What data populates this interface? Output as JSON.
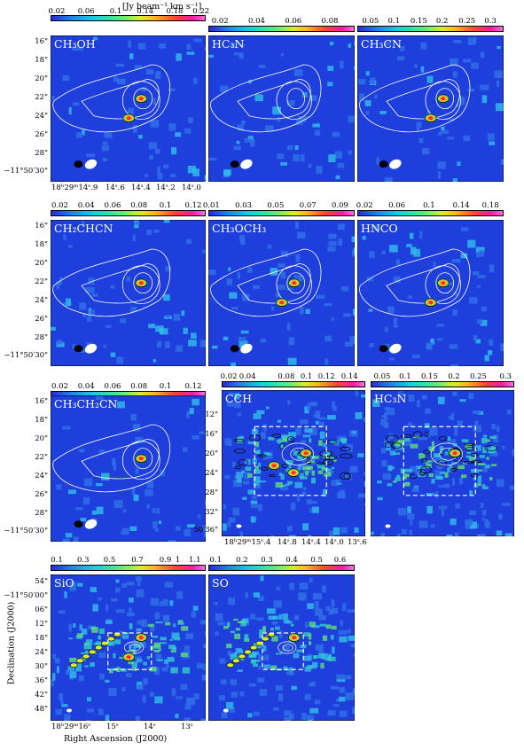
{
  "unit_label": "[Jy beam⁻¹ km s⁻¹]",
  "colors": {
    "map_bg": "#1f3fdc",
    "contour": "#ffffff",
    "outline": "#000000"
  },
  "axis": {
    "ylabel": "Declination (J2000)",
    "xlabel": "Right Ascension (J2000)",
    "dec_ticks_small": [
      "16\"",
      "18\"",
      "20\"",
      "22\"",
      "24\"",
      "26\"",
      "28\"",
      "−11°50′30\""
    ],
    "ra_ticks_small": [
      "18ʰ29ᵐ14ˢ.9",
      "14ˢ.6",
      "14ˢ.4",
      "14ˢ.2",
      "14ˢ.0"
    ],
    "dec_ticks_mid": [
      "12\"",
      "16\"",
      "20\"",
      "24\"",
      "28\"",
      "32\"",
      "50′36\""
    ],
    "ra_ticks_mid": [
      "18ʰ29ᵐ15ˢ.4",
      "14ˢ.8",
      "14ˢ.4",
      "14ˢ.0",
      "13ˢ.6"
    ],
    "dec_ticks_large": [
      "54\"",
      "−11°50′00\"",
      "06\"",
      "12\"",
      "18\"",
      "24\"",
      "30\"",
      "36\"",
      "42\"",
      "48\""
    ],
    "ra_ticks_large": [
      "18ʰ29ᵐ16ˢ",
      "15ˢ",
      "14ˢ",
      "13ˢ"
    ]
  },
  "panels": [
    {
      "label": "CH₃OH",
      "cbar": [
        "0.02",
        "0.06",
        "0.1",
        "0.14",
        "0.18",
        "0.22"
      ]
    },
    {
      "label": "HC₃N",
      "cbar": [
        "0.02",
        "0.04",
        "0.06",
        "0.08"
      ]
    },
    {
      "label": "CH₃CN",
      "cbar": [
        "0.05",
        "0.1",
        "0.15",
        "0.2",
        "0.25",
        "0.3"
      ]
    },
    {
      "label": "CH₂CHCN",
      "cbar": [
        "0.02",
        "0.04",
        "0.06",
        "0.08",
        "0.1",
        "0.12"
      ]
    },
    {
      "label": "CH₃OCH₃",
      "cbar": [
        "0.01",
        "0.03",
        "0.05",
        "0.07",
        "0.09"
      ]
    },
    {
      "label": "HNCO",
      "cbar": [
        "0.02",
        "0.06",
        "0.1",
        "0.14",
        "0.18"
      ]
    },
    {
      "label": "CH₃CH₂CN",
      "cbar": [
        "0.02",
        "0.04",
        "0.06",
        "0.08",
        "0.1",
        "0.12"
      ]
    },
    {
      "label": "CCH",
      "cbar": [
        "0.02",
        "0.04",
        "0.08",
        "0.1",
        "0.12",
        "0.14"
      ]
    },
    {
      "label": "HC₃N",
      "cbar": [
        "0.05",
        "0.1",
        "0.15",
        "0.2",
        "0.25",
        "0.3"
      ]
    },
    {
      "label": "SiO",
      "cbar": [
        "0.1",
        "0.3",
        "0.5",
        "0.7",
        "0.9",
        "1",
        "1.1"
      ]
    },
    {
      "label": "SO",
      "cbar": [
        "0.1",
        "0.2",
        "0.3",
        "0.4",
        "0.5",
        "0.6"
      ]
    }
  ]
}
